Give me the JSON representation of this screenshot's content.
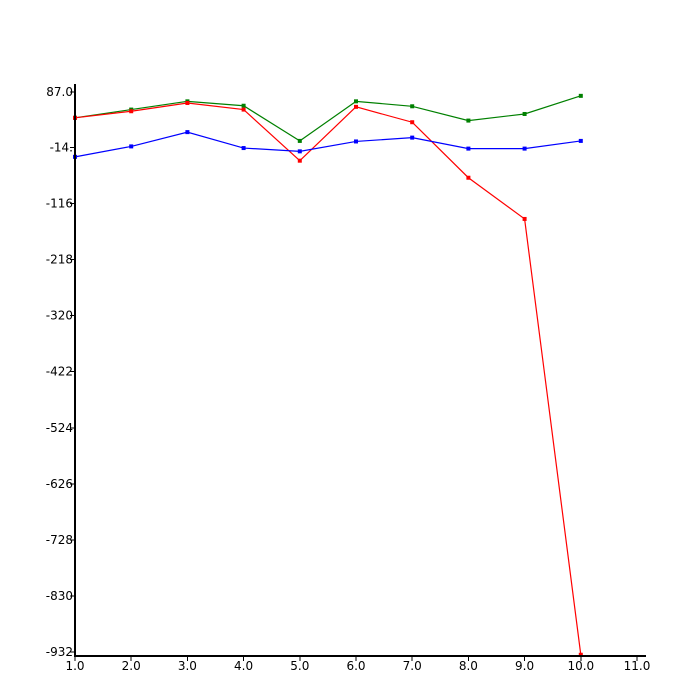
{
  "chart_data": {
    "type": "line",
    "title": "",
    "xlabel": "",
    "ylabel": "",
    "xlim": [
      1.0,
      11.0
    ],
    "ylim": [
      -932,
      87
    ],
    "grid": false,
    "x_ticks": [
      {
        "value": 1.0,
        "label": "1.0"
      },
      {
        "value": 2.0,
        "label": "2.0"
      },
      {
        "value": 3.0,
        "label": "3.0"
      },
      {
        "value": 4.0,
        "label": "4.0"
      },
      {
        "value": 5.0,
        "label": "5.0"
      },
      {
        "value": 6.0,
        "label": "6.0"
      },
      {
        "value": 7.0,
        "label": "7.0"
      },
      {
        "value": 8.0,
        "label": "8.0"
      },
      {
        "value": 9.0,
        "label": "9.0"
      },
      {
        "value": 10.0,
        "label": "10.0"
      },
      {
        "value": 11.0,
        "label": "11.0"
      }
    ],
    "y_ticks": [
      {
        "value": 87,
        "label": "87.0"
      },
      {
        "value": -14,
        "label": "-14."
      },
      {
        "value": -116,
        "label": "-116"
      },
      {
        "value": -218,
        "label": "-218"
      },
      {
        "value": -320,
        "label": "-320"
      },
      {
        "value": -422,
        "label": "-422"
      },
      {
        "value": -524,
        "label": "-524"
      },
      {
        "value": -626,
        "label": "-626"
      },
      {
        "value": -728,
        "label": "-728"
      },
      {
        "value": -830,
        "label": "-830"
      },
      {
        "value": -932,
        "label": "-932"
      }
    ],
    "series": [
      {
        "color": "#008000",
        "x": [
          1,
          2,
          3,
          4,
          5,
          6,
          7,
          8,
          9,
          10
        ],
        "y": [
          40,
          55,
          70,
          62,
          -2,
          70,
          61,
          35,
          47,
          80
        ]
      },
      {
        "color": "#ff0000",
        "x": [
          1,
          2,
          3,
          4,
          5,
          6,
          7,
          8,
          9,
          10
        ],
        "y": [
          40,
          52,
          67,
          55,
          -38,
          60,
          32,
          -69,
          -144,
          -937
        ]
      },
      {
        "color": "#0000ff",
        "x": [
          1,
          2,
          3,
          4,
          5,
          6,
          7,
          8,
          9,
          10
        ],
        "y": [
          -31,
          -12,
          14,
          -15,
          -21,
          -3,
          4,
          -16,
          -16,
          -2
        ]
      }
    ]
  }
}
